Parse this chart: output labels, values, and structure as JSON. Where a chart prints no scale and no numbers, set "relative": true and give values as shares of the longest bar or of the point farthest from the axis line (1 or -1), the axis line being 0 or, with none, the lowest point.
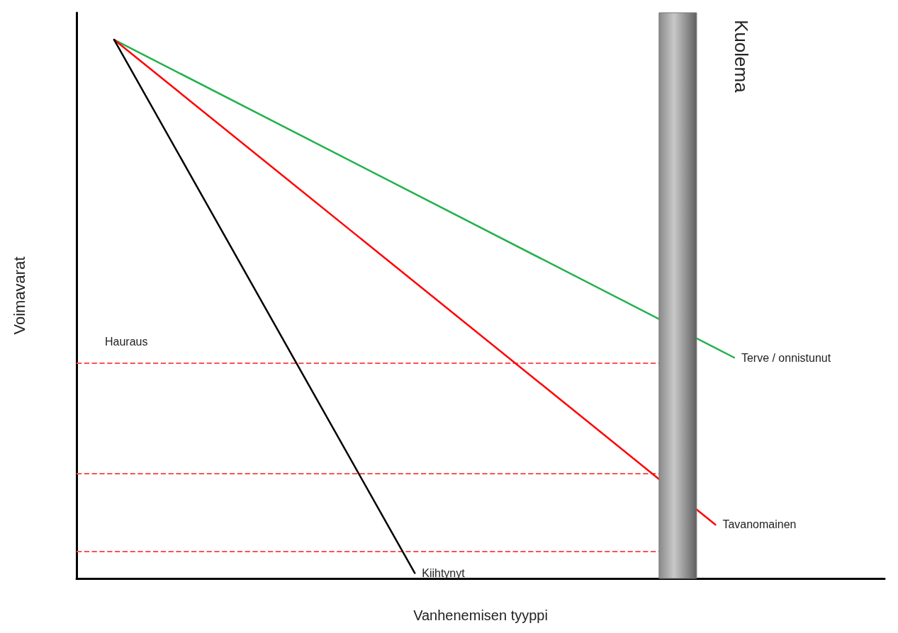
{
  "chart_data": {
    "type": "line",
    "relative": true,
    "xlabel": "Vanhenemisen tyyppi",
    "ylabel": "Voimavarat",
    "categories": [
      null,
      null,
      null,
      null,
      null,
      null,
      null,
      null,
      null,
      null,
      null,
      null,
      null,
      null,
      null,
      null,
      null,
      null,
      null,
      null,
      null,
      null,
      null,
      null,
      null,
      null,
      null,
      null,
      null,
      null,
      null,
      null,
      null,
      null,
      null,
      null,
      null,
      null,
      null,
      null,
      null,
      null,
      null,
      null
    ],
    "ylim": [
      0,
      1.05
    ],
    "grid": false,
    "legend": false,
    "marker": "none",
    "line_style": "solid",
    "series": [
      {
        "name": "Terve / onnistunut",
        "color": "#22b14c",
        "values": [
          null,
          null,
          1,
          null,
          null,
          null,
          null,
          null,
          null,
          null,
          null,
          null,
          null,
          null,
          null,
          null,
          null,
          null,
          null,
          null,
          null,
          null,
          null,
          null,
          null,
          null,
          null,
          null,
          null,
          null,
          null,
          null,
          null,
          null,
          null,
          0.41,
          null,
          null,
          null,
          null,
          null,
          null,
          null,
          null
        ]
      },
      {
        "name": "Tavanomainen",
        "color": "#ff0000",
        "values": [
          null,
          null,
          1,
          null,
          null,
          null,
          null,
          null,
          null,
          null,
          null,
          null,
          null,
          null,
          null,
          null,
          null,
          null,
          null,
          null,
          null,
          null,
          null,
          null,
          null,
          null,
          null,
          null,
          null,
          null,
          null,
          null,
          null,
          null,
          0.1,
          null,
          null,
          null,
          null,
          null,
          null,
          null,
          null,
          null
        ]
      },
      {
        "name": "Kiihtynyt",
        "color": "#000000",
        "values": [
          null,
          null,
          1,
          null,
          null,
          null,
          null,
          null,
          null,
          null,
          null,
          null,
          null,
          null,
          null,
          null,
          null,
          null,
          0.01,
          null,
          null,
          null,
          null,
          null,
          null,
          null,
          null,
          null,
          null,
          null,
          null,
          null,
          null,
          null,
          null,
          null,
          null,
          null,
          null,
          null,
          null,
          null,
          null,
          null
        ]
      }
    ],
    "ref_lines": [
      {
        "axis": "y",
        "value": 0.4,
        "label": "Hauraus",
        "color": "#ff5050",
        "line_style": "dashed"
      },
      {
        "axis": "y",
        "value": 0.195,
        "label": null,
        "color": "#ff5050",
        "line_style": "dashed"
      },
      {
        "axis": "y",
        "value": 0.05,
        "label": null,
        "color": "#ff5050",
        "line_style": "dashed"
      }
    ],
    "annotations": [
      "Kuolema"
    ]
  }
}
